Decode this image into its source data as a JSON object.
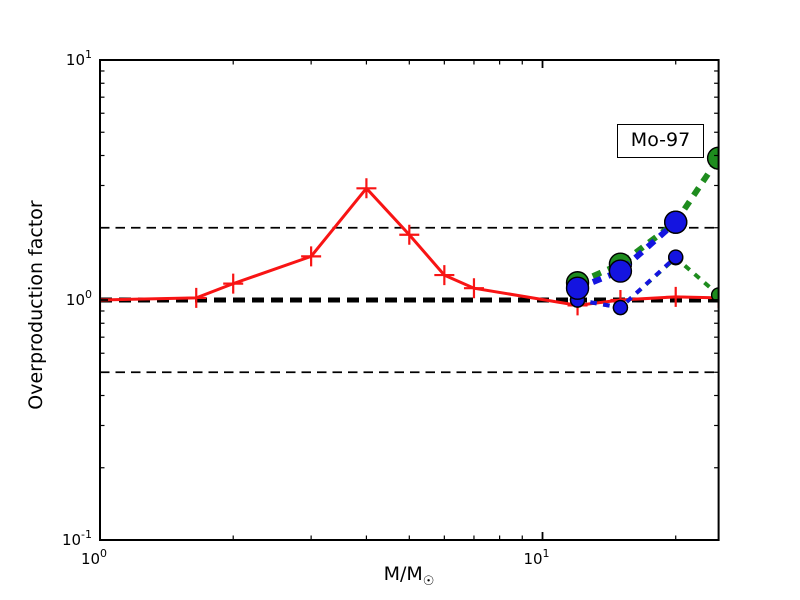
{
  "figure": {
    "ylabel": "Overproduction factor",
    "xlabel_main": "M/M",
    "xlabel_sub": "☉",
    "annotation_label": "Mo-97",
    "background": "#ffffff",
    "frame_color": "#000000"
  },
  "chart_data": {
    "type": "line",
    "title": "",
    "xlabel": "M/M☉",
    "ylabel": "Overproduction factor",
    "annotation": "Mo-97",
    "xscale": "log",
    "yscale": "log",
    "xlim": [
      1,
      25
    ],
    "ylim": [
      0.1,
      10
    ],
    "grid": false,
    "legend": "none",
    "x_major_ticks": [
      1,
      10
    ],
    "x_minor_ticks": [
      2,
      3,
      4,
      5,
      6,
      7,
      8,
      9,
      20
    ],
    "y_major_ticks": [
      0.1,
      1,
      10
    ],
    "y_minor_ticks": [
      0.2,
      0.3,
      0.4,
      0.5,
      0.6,
      0.7,
      0.8,
      0.9,
      2,
      3,
      4,
      5,
      6,
      7,
      8,
      9
    ],
    "reference_lines": [
      {
        "y": 1.0,
        "color": "#000000",
        "weight": "thick"
      },
      {
        "y": 2.0,
        "color": "#000000",
        "weight": "thin"
      },
      {
        "y": 0.5,
        "color": "#000000",
        "weight": "thin"
      }
    ],
    "series": [
      {
        "name": "red-solid-plus",
        "color": "#f81414",
        "linestyle": "solid",
        "linewidth": 3,
        "dash": null,
        "marker": "plus",
        "marker_size": 10,
        "x": [
          1.0,
          1.65,
          2.0,
          3.0,
          4.0,
          5.0,
          6.0,
          7.0,
          12.0,
          15.0,
          20.0,
          25.0
        ],
        "y": [
          1.0,
          1.02,
          1.17,
          1.52,
          2.92,
          1.87,
          1.27,
          1.12,
          0.95,
          1.0,
          1.03,
          1.02
        ]
      },
      {
        "name": "green-thin-dashed-small-circles",
        "color": "#1e8c1e",
        "linestyle": "dashed",
        "linewidth": 4,
        "dash": [
          6.5,
          6.5
        ],
        "marker": "circle",
        "marker_size": 7,
        "x": [
          12.0,
          15.0,
          20.0,
          25.0
        ],
        "y": [
          1.0,
          0.93,
          1.5,
          1.05
        ]
      },
      {
        "name": "blue-thin-dashed-small-circles",
        "color": "#1414e0",
        "linestyle": "dashed",
        "linewidth": 4,
        "dash": [
          6.5,
          6.5
        ],
        "marker": "circle",
        "marker_size": 7,
        "x": [
          12.0,
          15.0,
          20.0
        ],
        "y": [
          1.0,
          0.93,
          1.51
        ]
      },
      {
        "name": "green-thick-dashed-large-circles",
        "color": "#1e8c1e",
        "linestyle": "dashed",
        "linewidth": 6,
        "dash": [
          9,
          7.5
        ],
        "marker": "circle",
        "marker_size": 11,
        "x": [
          12.0,
          15.0,
          20.0,
          25.0
        ],
        "y": [
          1.18,
          1.41,
          2.11,
          3.9
        ]
      },
      {
        "name": "blue-thick-dashed-large-circles",
        "color": "#1414e0",
        "linestyle": "dashed",
        "linewidth": 6,
        "dash": [
          9,
          7.5
        ],
        "marker": "circle",
        "marker_size": 11,
        "x": [
          12.0,
          15.0,
          20.0
        ],
        "y": [
          1.12,
          1.32,
          2.11
        ]
      }
    ]
  }
}
